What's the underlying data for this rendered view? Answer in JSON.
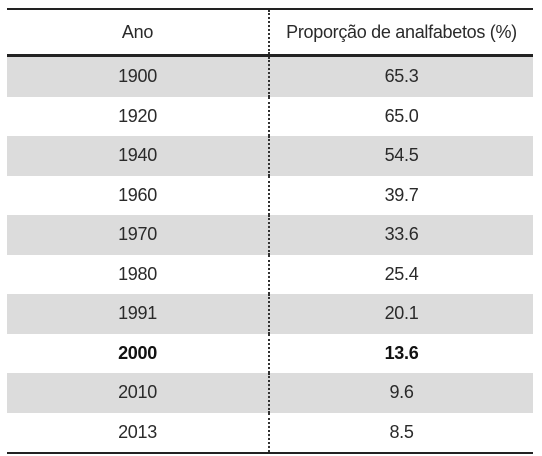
{
  "table": {
    "headers": {
      "year": "Ano",
      "value": "Proporção de analfabetos (%)"
    },
    "rows": [
      {
        "year": "1900",
        "value": "65.3",
        "shaded": true,
        "bold": false
      },
      {
        "year": "1920",
        "value": "65.0",
        "shaded": false,
        "bold": false
      },
      {
        "year": "1940",
        "value": "54.5",
        "shaded": true,
        "bold": false
      },
      {
        "year": "1960",
        "value": "39.7",
        "shaded": false,
        "bold": false
      },
      {
        "year": "1970",
        "value": "33.6",
        "shaded": true,
        "bold": false
      },
      {
        "year": "1980",
        "value": "25.4",
        "shaded": false,
        "bold": false
      },
      {
        "year": "1991",
        "value": "20.1",
        "shaded": true,
        "bold": false
      },
      {
        "year": "2000",
        "value": "13.6",
        "shaded": false,
        "bold": true
      },
      {
        "year": "2010",
        "value": "9.6",
        "shaded": true,
        "bold": false
      },
      {
        "year": "2013",
        "value": "8.5",
        "shaded": false,
        "bold": false
      }
    ],
    "colors": {
      "shade": "#dcdcdc",
      "rule": "#222222",
      "text": "#2a2a2a"
    }
  }
}
